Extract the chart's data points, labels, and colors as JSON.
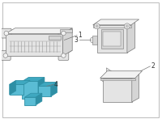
{
  "background_color": "#ffffff",
  "border_color": "#bbbbbb",
  "fig_width": 2.0,
  "fig_height": 1.47,
  "dpi": 100,
  "line_color": "#999999",
  "dark_line": "#777777",
  "light_fill": "#f2f2f2",
  "mid_fill": "#e4e4e4",
  "dark_fill": "#d5d5d5",
  "part4_fill": "#5abcd4",
  "part4_mid": "#3fa8c0",
  "part4_dark": "#2e8fa5",
  "label_color": "#333333",
  "label_fontsize": 5.5
}
